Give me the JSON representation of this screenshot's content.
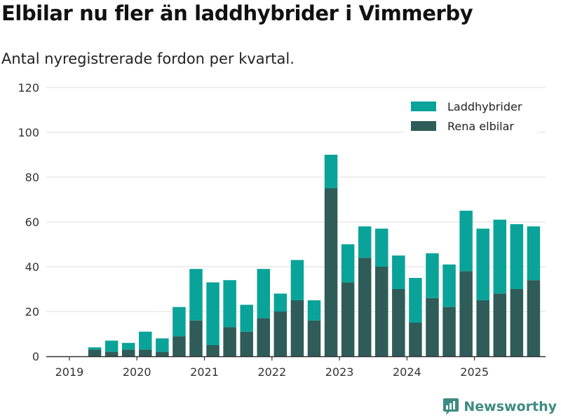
{
  "title": "Elbilar nu fler än laddhybrider i Vimmerby",
  "subtitle": "Antal nyregistrerade fordon per kvartal.",
  "brand": "Newsworthy",
  "colors": {
    "laddhybrider": "#0aa39a",
    "elbilar": "#2f5c58",
    "grid": "#dddddd",
    "axis": "#333333"
  },
  "chart_data": {
    "type": "bar",
    "stacked": true,
    "categories": [
      "2019Q1",
      "2019Q2",
      "2019Q3",
      "2019Q4",
      "2020Q1",
      "2020Q2",
      "2020Q3",
      "2020Q4",
      "2021Q1",
      "2021Q2",
      "2021Q3",
      "2021Q4",
      "2022Q1",
      "2022Q2",
      "2022Q3",
      "2022Q4",
      "2023Q1",
      "2023Q2",
      "2023Q3",
      "2023Q4",
      "2024Q1",
      "2024Q2",
      "2024Q3",
      "2024Q4",
      "2025Q1",
      "2025Q2",
      "2025Q3",
      "2025Q4"
    ],
    "series": [
      {
        "name": "Rena elbilar",
        "values": [
          0,
          3,
          2,
          3,
          3,
          2,
          9,
          16,
          5,
          13,
          11,
          17,
          20,
          25,
          16,
          75,
          33,
          44,
          40,
          30,
          15,
          26,
          22,
          38,
          25,
          28,
          30,
          34
        ]
      },
      {
        "name": "Laddhybrider",
        "values": [
          0,
          1,
          5,
          3,
          8,
          6,
          13,
          23,
          28,
          21,
          12,
          22,
          8,
          18,
          9,
          15,
          17,
          14,
          17,
          15,
          20,
          20,
          19,
          27,
          32,
          33,
          29,
          24
        ]
      }
    ],
    "legend": [
      "Laddhybrider",
      "Rena elbilar"
    ],
    "legend_position": "top-right",
    "xticks": [
      "2019",
      "2020",
      "2021",
      "2022",
      "2023",
      "2024",
      "2025"
    ],
    "yticks": [
      0,
      20,
      40,
      60,
      80,
      100,
      120
    ],
    "ylim": [
      0,
      120
    ],
    "xlabel": "",
    "ylabel": ""
  }
}
